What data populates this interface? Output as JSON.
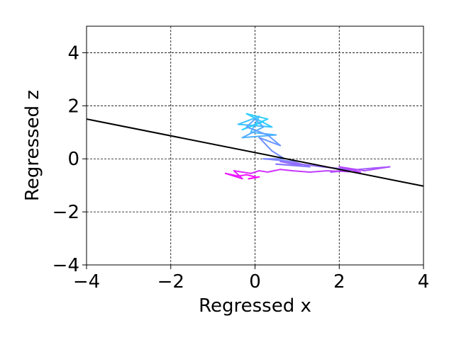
{
  "chart_data": {
    "type": "line",
    "title": "",
    "xlabel": "Regressed x",
    "ylabel": "Regressed z",
    "xlim": [
      -4,
      4
    ],
    "ylim": [
      -4,
      5
    ],
    "xticks": [
      -4,
      -2,
      0,
      2,
      4
    ],
    "yticks": [
      -4,
      -2,
      0,
      2,
      4
    ],
    "xtick_labels": [
      "−4",
      "−2",
      "0",
      "2",
      "4"
    ],
    "ytick_labels": [
      "−4",
      "−2",
      "0",
      "2",
      "4"
    ],
    "grid": true,
    "grid_style": "dashed",
    "fit_line": {
      "color": "#000000",
      "points": [
        [
          -4,
          1.5
        ],
        [
          4,
          -1.03
        ]
      ]
    },
    "trajectory": {
      "colormap": "cool",
      "colormap_colors": [
        "#00ffff",
        "#ff00ff"
      ],
      "points": [
        [
          0.2,
          1.4
        ],
        [
          -0.3,
          1.1
        ],
        [
          0.3,
          1.5
        ],
        [
          -0.2,
          1.7
        ],
        [
          0.4,
          1.2
        ],
        [
          -0.4,
          1.3
        ],
        [
          0.1,
          1.6
        ],
        [
          -0.1,
          1.0
        ],
        [
          0.5,
          0.9
        ],
        [
          -0.3,
          0.8
        ],
        [
          0.2,
          1.2
        ],
        [
          0.0,
          1.5
        ],
        [
          -0.2,
          1.2
        ],
        [
          0.3,
          0.9
        ],
        [
          0.6,
          0.5
        ],
        [
          0.1,
          0.8
        ],
        [
          0.4,
          0.3
        ],
        [
          0.7,
          0.0
        ],
        [
          0.2,
          0.0
        ],
        [
          0.9,
          -0.1
        ],
        [
          1.3,
          -0.3
        ],
        [
          0.5,
          -0.2
        ],
        [
          1.1,
          -0.25
        ],
        [
          0.6,
          -0.1
        ],
        [
          1.6,
          -0.3
        ],
        [
          2.2,
          -0.4
        ],
        [
          1.8,
          -0.5
        ],
        [
          2.8,
          -0.35
        ],
        [
          3.2,
          -0.3
        ],
        [
          2.6,
          -0.45
        ],
        [
          2.0,
          -0.3
        ],
        [
          2.5,
          -0.5
        ],
        [
          1.7,
          -0.45
        ],
        [
          1.3,
          -0.5
        ],
        [
          0.9,
          -0.45
        ],
        [
          0.6,
          -0.4
        ],
        [
          0.3,
          -0.5
        ],
        [
          0.1,
          -0.45
        ],
        [
          -0.1,
          -0.55
        ],
        [
          -0.5,
          -0.45
        ],
        [
          -0.3,
          -0.75
        ],
        [
          -0.7,
          -0.55
        ],
        [
          -0.4,
          -0.65
        ],
        [
          -0.2,
          -0.6
        ],
        [
          0.05,
          -0.7
        ],
        [
          -0.15,
          -0.75
        ],
        [
          0.1,
          -0.68
        ]
      ]
    }
  }
}
